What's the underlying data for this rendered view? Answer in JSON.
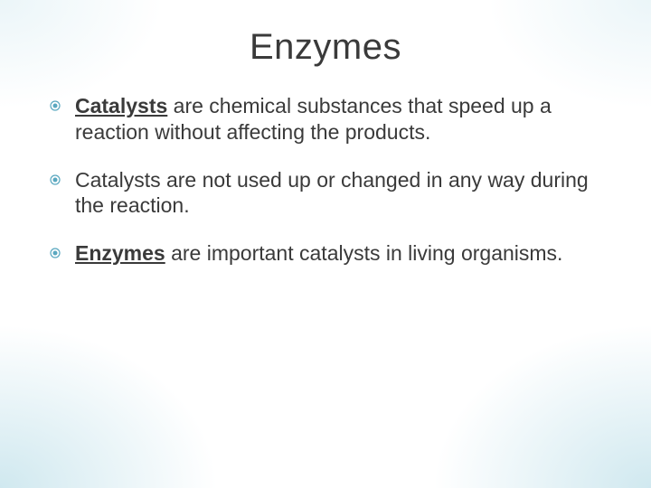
{
  "slide": {
    "title": "Enzymes",
    "title_fontsize": 40,
    "title_color": "#3a3a3a",
    "body_fontsize": 23,
    "body_color": "#3a3a3a",
    "bullet_color": "#5aa8c0",
    "background_color": "#ffffff",
    "corner_glow_color": "rgba(120,190,210,0.35)",
    "bullets": [
      {
        "runs": [
          {
            "text": "Catalysts",
            "bold": true,
            "underline": true
          },
          {
            "text": " are chemical substances that speed up a reaction without affecting the products."
          }
        ]
      },
      {
        "runs": [
          {
            "text": "Catalysts are not used up or changed in any way during the reaction."
          }
        ]
      },
      {
        "runs": [
          {
            "text": "Enzymes",
            "bold": true,
            "underline": true
          },
          {
            "text": " are important catalysts in living organisms."
          }
        ]
      }
    ]
  }
}
